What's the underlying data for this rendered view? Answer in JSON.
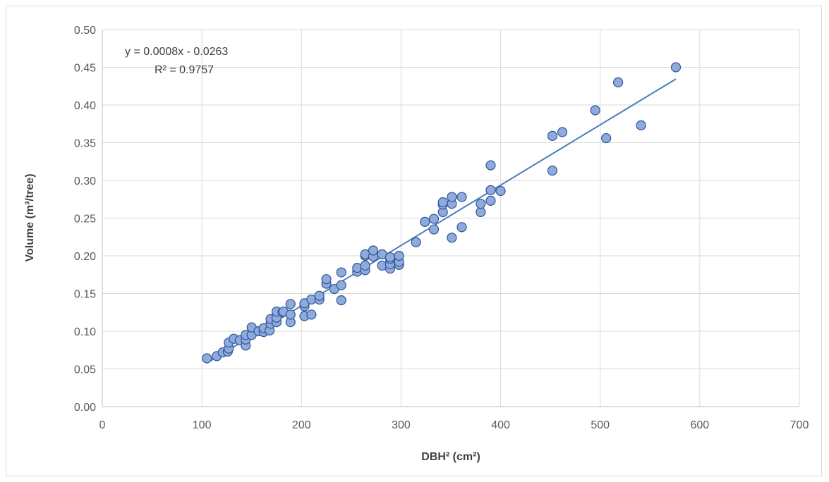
{
  "chart_data": {
    "type": "scatter",
    "title": "",
    "xlabel": "DBH² (cm²)",
    "ylabel": "Volume (m³/tree)",
    "xlim": [
      0,
      700
    ],
    "ylim": [
      0,
      0.5
    ],
    "x_ticks": [
      0,
      100,
      200,
      300,
      400,
      500,
      600,
      700
    ],
    "y_ticks": [
      0.0,
      0.05,
      0.1,
      0.15,
      0.2,
      0.25,
      0.3,
      0.35,
      0.4,
      0.45,
      0.5
    ],
    "x_tick_labels": [
      "0",
      "100",
      "200",
      "300",
      "400",
      "500",
      "600",
      "700"
    ],
    "y_tick_labels": [
      "0.00",
      "0.05",
      "0.10",
      "0.15",
      "0.20",
      "0.25",
      "0.30",
      "0.35",
      "0.40",
      "0.45",
      "0.50"
    ],
    "grid": "vertical and horizontal major gridlines",
    "legend": "none",
    "marker_color": "#8faadc",
    "marker_edge_color": "#2f5597",
    "trendline_color": "#4a7ebb",
    "trendline": {
      "type": "linear",
      "slope": 0.0008,
      "intercept": -0.0263,
      "x_range": [
        105,
        576
      ],
      "equation_label": "y = 0.0008x - 0.0263",
      "r2_label": "R² = 0.9757"
    },
    "series": [
      {
        "points": [
          [
            105,
            0.064
          ],
          [
            115,
            0.067
          ],
          [
            121,
            0.072
          ],
          [
            126,
            0.073
          ],
          [
            127,
            0.077
          ],
          [
            127,
            0.085
          ],
          [
            132,
            0.09
          ],
          [
            138,
            0.088
          ],
          [
            144,
            0.081
          ],
          [
            144,
            0.089
          ],
          [
            144,
            0.095
          ],
          [
            150,
            0.095
          ],
          [
            150,
            0.105
          ],
          [
            157,
            0.1
          ],
          [
            162,
            0.099
          ],
          [
            162,
            0.104
          ],
          [
            168,
            0.101
          ],
          [
            169,
            0.11
          ],
          [
            169,
            0.116
          ],
          [
            175,
            0.112
          ],
          [
            175,
            0.118
          ],
          [
            175,
            0.126
          ],
          [
            181,
            0.125
          ],
          [
            182,
            0.126
          ],
          [
            189,
            0.112
          ],
          [
            189,
            0.122
          ],
          [
            189,
            0.136
          ],
          [
            203,
            0.12
          ],
          [
            203,
            0.133
          ],
          [
            203,
            0.137
          ],
          [
            210,
            0.122
          ],
          [
            210,
            0.142
          ],
          [
            218,
            0.142
          ],
          [
            218,
            0.147
          ],
          [
            225,
            0.163
          ],
          [
            225,
            0.169
          ],
          [
            233,
            0.156
          ],
          [
            240,
            0.141
          ],
          [
            240,
            0.161
          ],
          [
            240,
            0.178
          ],
          [
            256,
            0.179
          ],
          [
            256,
            0.184
          ],
          [
            264,
            0.181
          ],
          [
            264,
            0.187
          ],
          [
            264,
            0.2
          ],
          [
            264,
            0.202
          ],
          [
            272,
            0.199
          ],
          [
            272,
            0.207
          ],
          [
            281,
            0.187
          ],
          [
            281,
            0.202
          ],
          [
            289,
            0.183
          ],
          [
            289,
            0.189
          ],
          [
            289,
            0.196
          ],
          [
            289,
            0.198
          ],
          [
            298,
            0.188
          ],
          [
            298,
            0.192
          ],
          [
            298,
            0.2
          ],
          [
            315,
            0.218
          ],
          [
            324,
            0.245
          ],
          [
            333,
            0.235
          ],
          [
            333,
            0.249
          ],
          [
            342,
            0.258
          ],
          [
            342,
            0.268
          ],
          [
            342,
            0.271
          ],
          [
            351,
            0.224
          ],
          [
            351,
            0.269
          ],
          [
            351,
            0.278
          ],
          [
            361,
            0.238
          ],
          [
            361,
            0.278
          ],
          [
            380,
            0.258
          ],
          [
            380,
            0.269
          ],
          [
            390,
            0.273
          ],
          [
            390,
            0.287
          ],
          [
            390,
            0.32
          ],
          [
            400,
            0.286
          ],
          [
            452,
            0.313
          ],
          [
            452,
            0.359
          ],
          [
            462,
            0.364
          ],
          [
            495,
            0.393
          ],
          [
            506,
            0.356
          ],
          [
            518,
            0.43
          ],
          [
            541,
            0.373
          ],
          [
            576,
            0.45
          ]
        ]
      }
    ]
  }
}
